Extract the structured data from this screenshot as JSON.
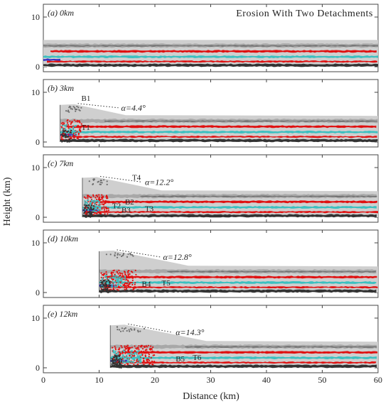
{
  "figure": {
    "title": "Erosion With Two Detachments",
    "ylabel": "Height (km)",
    "xlabel": "Distance (km)",
    "x_ticks": [
      "0",
      "10",
      "20",
      "30",
      "40",
      "50",
      "60"
    ],
    "y_ticks": [
      "0",
      "10"
    ]
  },
  "colors": {
    "upper_gray": "#a8a8a8",
    "dark_gray": "#6e6e6e",
    "light_gray": "#cfcfcf",
    "red": "#e01010",
    "cyan": "#3cc0c0",
    "blue": "#3535c8",
    "black": "#333333"
  },
  "panels": [
    {
      "label": "(a) 0km",
      "front_km": 0,
      "alpha_text": "",
      "annotations": []
    },
    {
      "label": "(b) 3km",
      "front_km": 3,
      "alpha_text": "α=4.4°",
      "annotations": [
        {
          "text": "B1"
        },
        {
          "text": "T1"
        }
      ]
    },
    {
      "label": "(c) 7km",
      "front_km": 7,
      "alpha_text": "α=12.2°",
      "annotations": [
        {
          "text": "T4"
        },
        {
          "text": "T2"
        },
        {
          "text": "B3"
        },
        {
          "text": "T3"
        },
        {
          "text": "B2"
        }
      ]
    },
    {
      "label": "(d) 10km",
      "front_km": 10,
      "alpha_text": "α=12.8°",
      "annotations": [
        {
          "text": "B4"
        },
        {
          "text": "T5"
        }
      ]
    },
    {
      "label": "(e) 12km",
      "front_km": 12,
      "alpha_text": "α=14.3°",
      "annotations": [
        {
          "text": "B5"
        },
        {
          "text": "T6"
        }
      ]
    }
  ]
}
